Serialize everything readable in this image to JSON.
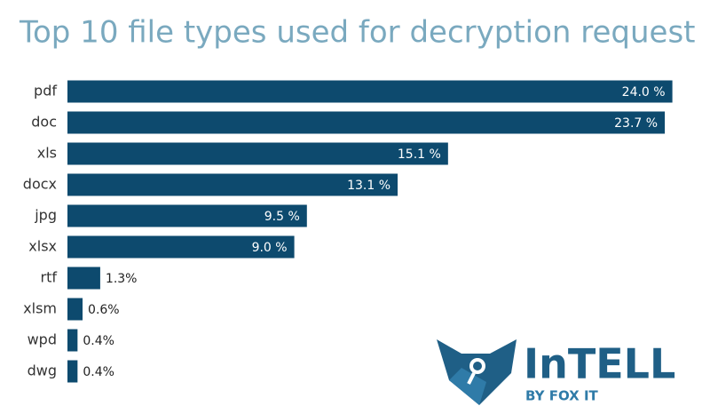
{
  "chart_data": {
    "type": "bar",
    "orientation": "horizontal",
    "title": "Top 10 file types used for decryption request",
    "categories": [
      "pdf",
      "doc",
      "xls",
      "docx",
      "jpg",
      "xlsx",
      "rtf",
      "xlsm",
      "wpd",
      "dwg"
    ],
    "values": [
      24.0,
      23.7,
      15.1,
      13.1,
      9.5,
      9.0,
      1.3,
      0.6,
      0.4,
      0.4
    ],
    "value_labels": [
      "24.0 %",
      "23.7 %",
      "15.1 %",
      "13.1 %",
      "9.5 %",
      "9.0 %",
      "1.3%",
      "0.6%",
      "0.4%",
      "0.4%"
    ],
    "color": "#0d4a6e",
    "logo": {
      "name": "InTELL",
      "tagline": "BY FOX IT"
    }
  }
}
